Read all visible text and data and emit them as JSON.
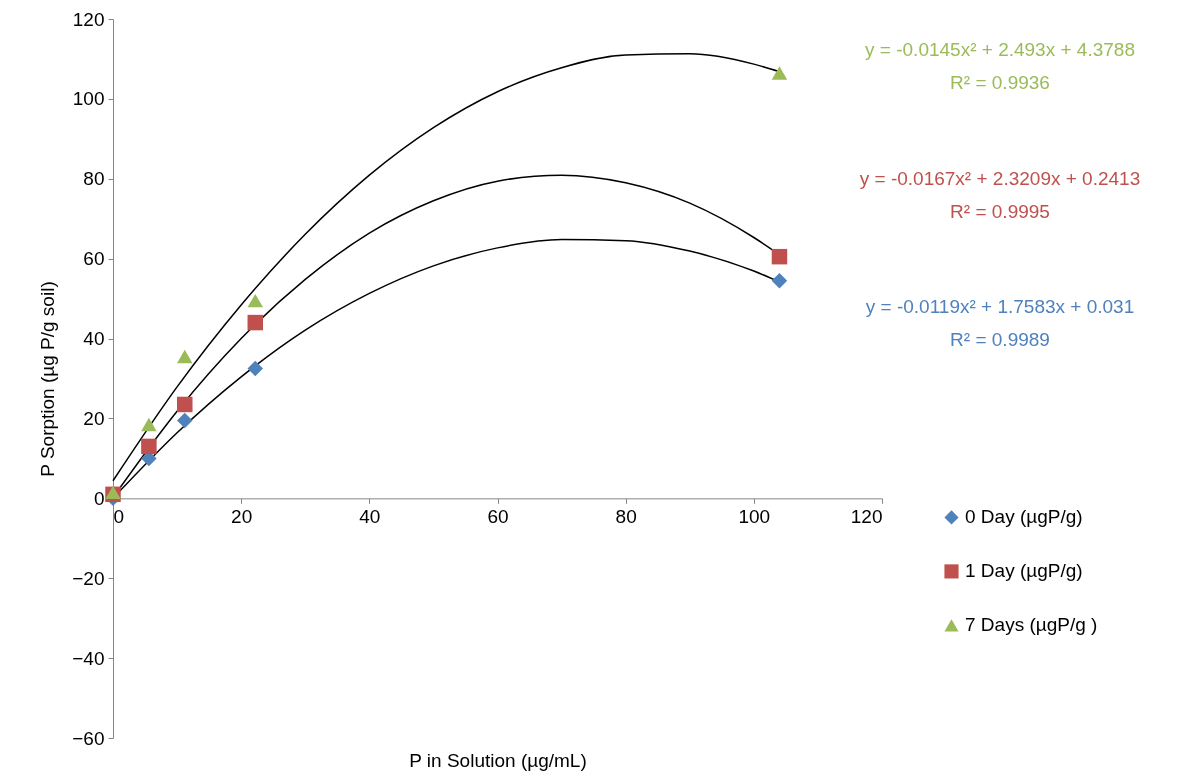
{
  "chart_data": {
    "type": "scatter",
    "xlabel": "P in Solution (µg/mL)",
    "ylabel": "P Sorption (µg P/g soil)",
    "xlim": [
      0,
      120
    ],
    "xticks": [
      0,
      20,
      40,
      60,
      80,
      100,
      120
    ],
    "ylim": [
      -60,
      120
    ],
    "yticks": [
      -60,
      -40,
      -20,
      0,
      20,
      40,
      60,
      80,
      100,
      120
    ],
    "grid": false,
    "legend": "right",
    "series": [
      {
        "name": "0 Day (µgP/g)",
        "color": "#4f81bd",
        "marker": "diamond",
        "x": [
          0,
          5.6,
          11.2,
          22.2,
          104
        ],
        "values": [
          0,
          10,
          19.5,
          32.5,
          54.5
        ]
      },
      {
        "name": "1 Day (µgP/g)",
        "color": "#c0504d",
        "marker": "square",
        "x": [
          0,
          5.6,
          11.2,
          22.2,
          104
        ],
        "values": [
          1,
          13,
          23.5,
          44,
          60.5
        ]
      },
      {
        "name": "7 Days (µgP/g )",
        "color": "#9bbb59",
        "marker": "triangle",
        "x": [
          0,
          5.6,
          11.2,
          22.2,
          104
        ],
        "values": [
          1.5,
          18.5,
          35.5,
          49.5,
          106.5
        ]
      },
      {
        "type": "line",
        "color": "#000000",
        "x": [
          0,
          10,
          20,
          30,
          40,
          50,
          60,
          70,
          80,
          90,
          100,
          104
        ],
        "values": [
          0,
          16.4,
          30.4,
          42.1,
          51.3,
          58.2,
          62.7,
          64.8,
          64.5,
          61.9,
          56.9,
          54.2
        ]
      },
      {
        "type": "line",
        "color": "#000000",
        "x": [
          0,
          10,
          20,
          30,
          40,
          50,
          60,
          70,
          80,
          90,
          100,
          104
        ],
        "values": [
          0.2,
          21.8,
          40,
          54.8,
          66.4,
          74.5,
          79.4,
          80.9,
          79,
          73.9,
          65.3,
          61
        ]
      },
      {
        "type": "line",
        "color": "#000000",
        "x": [
          0,
          10,
          20,
          30,
          40,
          50,
          60,
          70,
          80,
          90,
          100,
          104
        ],
        "values": [
          4.4,
          27.9,
          48.4,
          66.1,
          80.9,
          92.8,
          101.8,
          107.8,
          111,
          111.3,
          108.7,
          106.8
        ]
      }
    ],
    "annotations": [
      "y = -0.0145x² + 2.493x + 4.3788",
      "R² = 0.9936",
      "y = -0.0167x² + 2.3209x + 0.2413",
      "R² = 0.9995",
      "y = -0.0119x² + 1.7583x + 0.031",
      "R² = 0.9989"
    ]
  }
}
